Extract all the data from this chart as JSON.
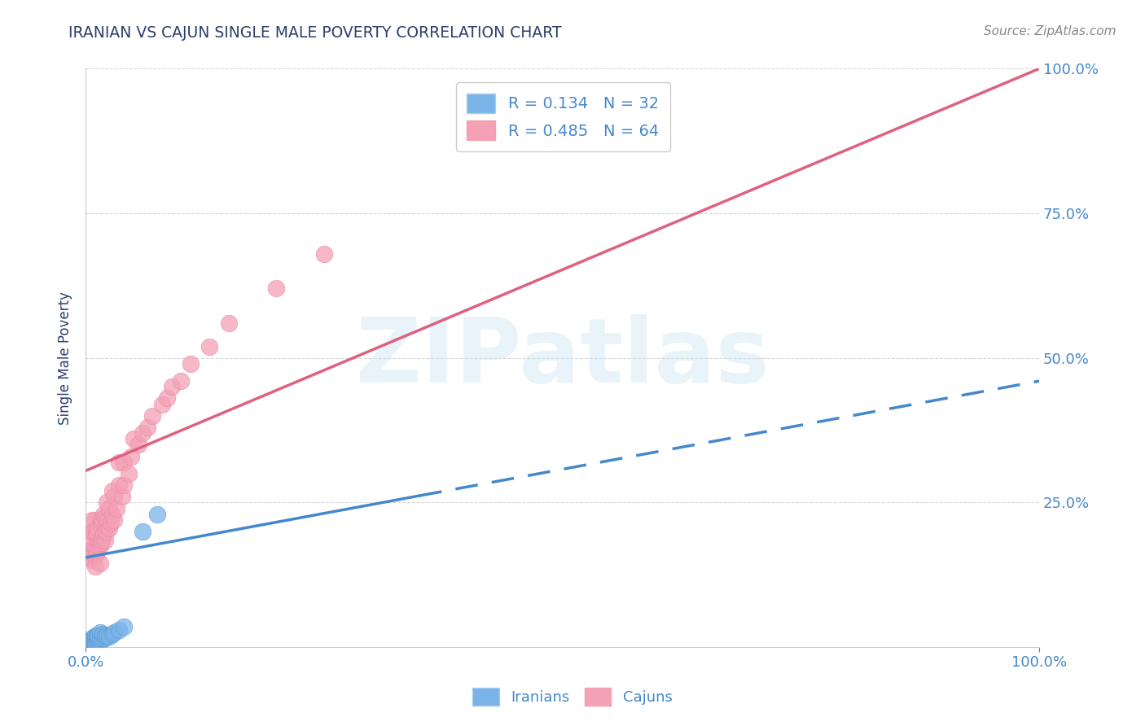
{
  "title": "IRANIAN VS CAJUN SINGLE MALE POVERTY CORRELATION CHART",
  "source": "Source: ZipAtlas.com",
  "ylabel": "Single Male Poverty",
  "xlim": [
    0.0,
    1.0
  ],
  "ylim": [
    0.0,
    1.0
  ],
  "title_color": "#2c3e6b",
  "source_color": "#888888",
  "background_color": "#ffffff",
  "watermark": "ZIPatlas",
  "iranians_color": "#7ab3e8",
  "cajuns_color": "#f4a0b5",
  "iranians_line_color": "#4488cc",
  "cajuns_line_color": "#e06080",
  "R_iranian": 0.134,
  "N_iranian": 32,
  "R_cajun": 0.485,
  "N_cajun": 64,
  "iran_line_x0": 0.0,
  "iran_line_y0": 0.155,
  "iran_line_x1": 1.0,
  "iran_line_y1": 0.46,
  "iran_line_solid_x1": 0.35,
  "cajun_line_x0": 0.0,
  "cajun_line_y0": 0.305,
  "cajun_line_x1": 1.0,
  "cajun_line_y1": 1.0,
  "iranians_x": [
    0.005,
    0.005,
    0.005,
    0.005,
    0.007,
    0.007,
    0.007,
    0.008,
    0.008,
    0.01,
    0.01,
    0.01,
    0.01,
    0.012,
    0.012,
    0.013,
    0.013,
    0.015,
    0.015,
    0.015,
    0.018,
    0.018,
    0.02,
    0.02,
    0.022,
    0.025,
    0.028,
    0.03,
    0.035,
    0.04,
    0.06,
    0.075
  ],
  "iranians_y": [
    0.005,
    0.008,
    0.01,
    0.012,
    0.008,
    0.01,
    0.015,
    0.01,
    0.015,
    0.005,
    0.01,
    0.015,
    0.02,
    0.012,
    0.018,
    0.015,
    0.02,
    0.01,
    0.015,
    0.025,
    0.015,
    0.022,
    0.015,
    0.02,
    0.02,
    0.018,
    0.022,
    0.025,
    0.03,
    0.035,
    0.2,
    0.23
  ],
  "cajuns_x": [
    0.005,
    0.005,
    0.006,
    0.007,
    0.007,
    0.008,
    0.008,
    0.009,
    0.01,
    0.01,
    0.01,
    0.011,
    0.011,
    0.012,
    0.012,
    0.013,
    0.013,
    0.014,
    0.015,
    0.015,
    0.015,
    0.016,
    0.016,
    0.017,
    0.017,
    0.018,
    0.018,
    0.019,
    0.019,
    0.02,
    0.02,
    0.021,
    0.022,
    0.022,
    0.023,
    0.025,
    0.025,
    0.026,
    0.028,
    0.028,
    0.03,
    0.03,
    0.032,
    0.035,
    0.035,
    0.038,
    0.04,
    0.04,
    0.045,
    0.048,
    0.05,
    0.055,
    0.06,
    0.065,
    0.07,
    0.08,
    0.085,
    0.09,
    0.1,
    0.11,
    0.13,
    0.15,
    0.2,
    0.25
  ],
  "cajuns_y": [
    0.155,
    0.18,
    0.2,
    0.15,
    0.22,
    0.16,
    0.2,
    0.175,
    0.14,
    0.17,
    0.22,
    0.16,
    0.2,
    0.165,
    0.195,
    0.175,
    0.205,
    0.18,
    0.145,
    0.175,
    0.22,
    0.18,
    0.21,
    0.185,
    0.215,
    0.19,
    0.22,
    0.195,
    0.23,
    0.185,
    0.225,
    0.2,
    0.21,
    0.25,
    0.22,
    0.205,
    0.24,
    0.215,
    0.23,
    0.27,
    0.22,
    0.26,
    0.24,
    0.28,
    0.32,
    0.26,
    0.28,
    0.32,
    0.3,
    0.33,
    0.36,
    0.35,
    0.37,
    0.38,
    0.4,
    0.42,
    0.43,
    0.45,
    0.46,
    0.49,
    0.52,
    0.56,
    0.62,
    0.68
  ],
  "grid_color": "#cccccc",
  "tick_color": "#4488cc",
  "ytick_positions": [
    0.25,
    0.5,
    0.75,
    1.0
  ],
  "ytick_labels": [
    "25.0%",
    "50.0%",
    "75.0%",
    "100.0%"
  ],
  "xtick_positions": [
    0.0,
    1.0
  ],
  "xtick_labels": [
    "0.0%",
    "100.0%"
  ]
}
